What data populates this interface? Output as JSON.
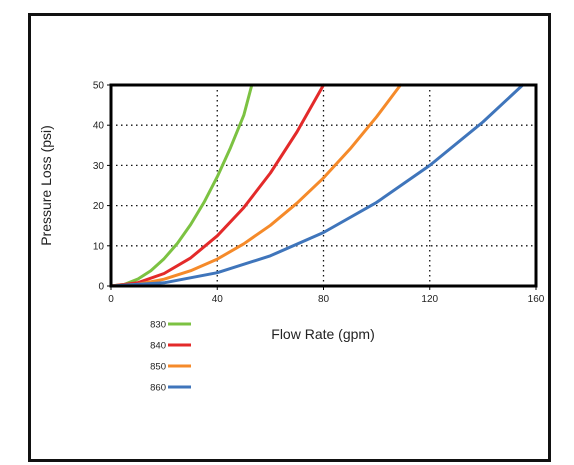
{
  "chart_data": {
    "type": "line",
    "xlabel": "Flow Rate (gpm)",
    "ylabel": "Pressure Loss (psi)",
    "xlim": [
      0,
      160
    ],
    "ylim": [
      0,
      50
    ],
    "x_ticks": [
      0,
      40,
      80,
      120,
      160
    ],
    "y_ticks": [
      0,
      10,
      20,
      30,
      40,
      50
    ],
    "grid": "dotted",
    "legend_position": "bottom-left",
    "series": [
      {
        "name": "830",
        "color": "#7cc242",
        "x": [
          0,
          5,
          10,
          15,
          20,
          25,
          30,
          35,
          40,
          45,
          50,
          53
        ],
        "y": [
          0,
          0.4,
          1.7,
          3.8,
          6.8,
          10.6,
          15.3,
          20.8,
          27.2,
          34.4,
          42.5,
          50
        ]
      },
      {
        "name": "840",
        "color": "#e32a2a",
        "x": [
          0,
          10,
          20,
          30,
          40,
          50,
          60,
          70,
          80
        ],
        "y": [
          0,
          0.8,
          3.1,
          7.0,
          12.5,
          19.5,
          28.1,
          38.3,
          50
        ]
      },
      {
        "name": "850",
        "color": "#f58a2a",
        "x": [
          0,
          10,
          20,
          30,
          40,
          50,
          60,
          70,
          80,
          90,
          100,
          109
        ],
        "y": [
          0,
          0.4,
          1.7,
          3.8,
          6.7,
          10.5,
          15.1,
          20.6,
          26.9,
          34.1,
          42.1,
          50
        ]
      },
      {
        "name": "860",
        "color": "#3f75bb",
        "x": [
          0,
          20,
          40,
          60,
          80,
          100,
          120,
          140,
          155
        ],
        "y": [
          0,
          0.8,
          3.3,
          7.5,
          13.3,
          20.8,
          30.0,
          40.8,
          50
        ]
      }
    ]
  }
}
